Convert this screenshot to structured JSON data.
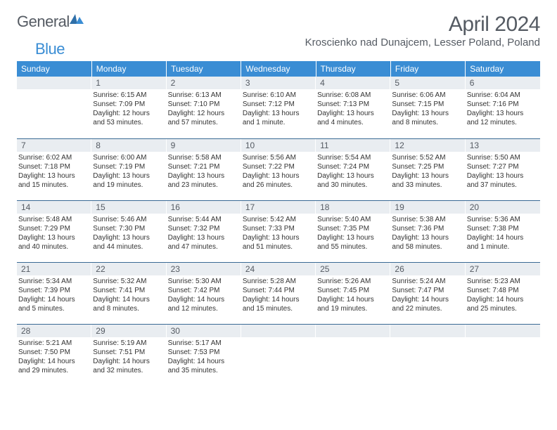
{
  "brand": {
    "part1": "General",
    "part2": "Blue"
  },
  "title": "April 2024",
  "location": "Kroscienko nad Dunajcem, Lesser Poland, Poland",
  "colors": {
    "header_bg": "#3a8dd4",
    "header_text": "#ffffff",
    "daynum_bg": "#e9edf1",
    "daynum_text": "#555b63",
    "row_border": "#3a6a94",
    "body_text": "#333333",
    "title_text": "#555b63"
  },
  "weekdays": [
    "Sunday",
    "Monday",
    "Tuesday",
    "Wednesday",
    "Thursday",
    "Friday",
    "Saturday"
  ],
  "weeks": [
    [
      {
        "day": "",
        "lines": []
      },
      {
        "day": "1",
        "lines": [
          "Sunrise: 6:15 AM",
          "Sunset: 7:09 PM",
          "Daylight: 12 hours",
          "and 53 minutes."
        ]
      },
      {
        "day": "2",
        "lines": [
          "Sunrise: 6:13 AM",
          "Sunset: 7:10 PM",
          "Daylight: 12 hours",
          "and 57 minutes."
        ]
      },
      {
        "day": "3",
        "lines": [
          "Sunrise: 6:10 AM",
          "Sunset: 7:12 PM",
          "Daylight: 13 hours",
          "and 1 minute."
        ]
      },
      {
        "day": "4",
        "lines": [
          "Sunrise: 6:08 AM",
          "Sunset: 7:13 PM",
          "Daylight: 13 hours",
          "and 4 minutes."
        ]
      },
      {
        "day": "5",
        "lines": [
          "Sunrise: 6:06 AM",
          "Sunset: 7:15 PM",
          "Daylight: 13 hours",
          "and 8 minutes."
        ]
      },
      {
        "day": "6",
        "lines": [
          "Sunrise: 6:04 AM",
          "Sunset: 7:16 PM",
          "Daylight: 13 hours",
          "and 12 minutes."
        ]
      }
    ],
    [
      {
        "day": "7",
        "lines": [
          "Sunrise: 6:02 AM",
          "Sunset: 7:18 PM",
          "Daylight: 13 hours",
          "and 15 minutes."
        ]
      },
      {
        "day": "8",
        "lines": [
          "Sunrise: 6:00 AM",
          "Sunset: 7:19 PM",
          "Daylight: 13 hours",
          "and 19 minutes."
        ]
      },
      {
        "day": "9",
        "lines": [
          "Sunrise: 5:58 AM",
          "Sunset: 7:21 PM",
          "Daylight: 13 hours",
          "and 23 minutes."
        ]
      },
      {
        "day": "10",
        "lines": [
          "Sunrise: 5:56 AM",
          "Sunset: 7:22 PM",
          "Daylight: 13 hours",
          "and 26 minutes."
        ]
      },
      {
        "day": "11",
        "lines": [
          "Sunrise: 5:54 AM",
          "Sunset: 7:24 PM",
          "Daylight: 13 hours",
          "and 30 minutes."
        ]
      },
      {
        "day": "12",
        "lines": [
          "Sunrise: 5:52 AM",
          "Sunset: 7:25 PM",
          "Daylight: 13 hours",
          "and 33 minutes."
        ]
      },
      {
        "day": "13",
        "lines": [
          "Sunrise: 5:50 AM",
          "Sunset: 7:27 PM",
          "Daylight: 13 hours",
          "and 37 minutes."
        ]
      }
    ],
    [
      {
        "day": "14",
        "lines": [
          "Sunrise: 5:48 AM",
          "Sunset: 7:29 PM",
          "Daylight: 13 hours",
          "and 40 minutes."
        ]
      },
      {
        "day": "15",
        "lines": [
          "Sunrise: 5:46 AM",
          "Sunset: 7:30 PM",
          "Daylight: 13 hours",
          "and 44 minutes."
        ]
      },
      {
        "day": "16",
        "lines": [
          "Sunrise: 5:44 AM",
          "Sunset: 7:32 PM",
          "Daylight: 13 hours",
          "and 47 minutes."
        ]
      },
      {
        "day": "17",
        "lines": [
          "Sunrise: 5:42 AM",
          "Sunset: 7:33 PM",
          "Daylight: 13 hours",
          "and 51 minutes."
        ]
      },
      {
        "day": "18",
        "lines": [
          "Sunrise: 5:40 AM",
          "Sunset: 7:35 PM",
          "Daylight: 13 hours",
          "and 55 minutes."
        ]
      },
      {
        "day": "19",
        "lines": [
          "Sunrise: 5:38 AM",
          "Sunset: 7:36 PM",
          "Daylight: 13 hours",
          "and 58 minutes."
        ]
      },
      {
        "day": "20",
        "lines": [
          "Sunrise: 5:36 AM",
          "Sunset: 7:38 PM",
          "Daylight: 14 hours",
          "and 1 minute."
        ]
      }
    ],
    [
      {
        "day": "21",
        "lines": [
          "Sunrise: 5:34 AM",
          "Sunset: 7:39 PM",
          "Daylight: 14 hours",
          "and 5 minutes."
        ]
      },
      {
        "day": "22",
        "lines": [
          "Sunrise: 5:32 AM",
          "Sunset: 7:41 PM",
          "Daylight: 14 hours",
          "and 8 minutes."
        ]
      },
      {
        "day": "23",
        "lines": [
          "Sunrise: 5:30 AM",
          "Sunset: 7:42 PM",
          "Daylight: 14 hours",
          "and 12 minutes."
        ]
      },
      {
        "day": "24",
        "lines": [
          "Sunrise: 5:28 AM",
          "Sunset: 7:44 PM",
          "Daylight: 14 hours",
          "and 15 minutes."
        ]
      },
      {
        "day": "25",
        "lines": [
          "Sunrise: 5:26 AM",
          "Sunset: 7:45 PM",
          "Daylight: 14 hours",
          "and 19 minutes."
        ]
      },
      {
        "day": "26",
        "lines": [
          "Sunrise: 5:24 AM",
          "Sunset: 7:47 PM",
          "Daylight: 14 hours",
          "and 22 minutes."
        ]
      },
      {
        "day": "27",
        "lines": [
          "Sunrise: 5:23 AM",
          "Sunset: 7:48 PM",
          "Daylight: 14 hours",
          "and 25 minutes."
        ]
      }
    ],
    [
      {
        "day": "28",
        "lines": [
          "Sunrise: 5:21 AM",
          "Sunset: 7:50 PM",
          "Daylight: 14 hours",
          "and 29 minutes."
        ]
      },
      {
        "day": "29",
        "lines": [
          "Sunrise: 5:19 AM",
          "Sunset: 7:51 PM",
          "Daylight: 14 hours",
          "and 32 minutes."
        ]
      },
      {
        "day": "30",
        "lines": [
          "Sunrise: 5:17 AM",
          "Sunset: 7:53 PM",
          "Daylight: 14 hours",
          "and 35 minutes."
        ]
      },
      {
        "day": "",
        "lines": []
      },
      {
        "day": "",
        "lines": []
      },
      {
        "day": "",
        "lines": []
      },
      {
        "day": "",
        "lines": []
      }
    ]
  ]
}
